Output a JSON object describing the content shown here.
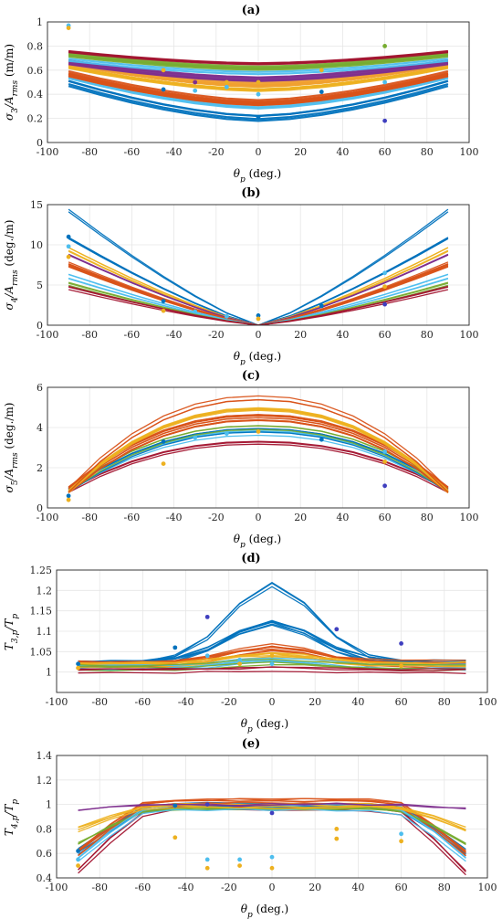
{
  "chart_data": [
    {
      "id": "a",
      "panel_label": "(a)",
      "type": "line",
      "xlabel": "θp (deg.)",
      "ylabel": "σ3/Arms (m/m)",
      "xlim": [
        -100,
        100
      ],
      "ylim": [
        0,
        1
      ],
      "xticks": [
        "-100",
        "-80",
        "-60",
        "-40",
        "-20",
        "0",
        "20",
        "40",
        "60",
        "80",
        "100"
      ],
      "yticks": [
        "0",
        "0.2",
        "0.4",
        "0.6",
        "0.8",
        "1"
      ],
      "grid": true,
      "curve_shape": "bowl",
      "x": [
        -90,
        -75,
        -60,
        -45,
        -30,
        -15,
        0,
        15,
        30,
        45,
        60,
        75,
        90
      ],
      "bands": [
        {
          "color": "#0072BD",
          "edge": 0.49,
          "center": 0.2,
          "count": 4
        },
        {
          "color": "#4DBEEE",
          "edge": 0.55,
          "center": 0.3,
          "count": 3
        },
        {
          "color": "#D95319",
          "edge": 0.57,
          "center": 0.33,
          "count": 10
        },
        {
          "color": "#EDB120",
          "edge": 0.64,
          "center": 0.45,
          "count": 6
        },
        {
          "color": "#F0A030",
          "edge": 0.66,
          "center": 0.48,
          "count": 4
        },
        {
          "color": "#7E2F8E",
          "edge": 0.67,
          "center": 0.53,
          "count": 5
        },
        {
          "color": "#4DBEEE",
          "edge": 0.7,
          "center": 0.59,
          "count": 3
        },
        {
          "color": "#77AC30",
          "edge": 0.72,
          "center": 0.61,
          "count": 4
        },
        {
          "color": "#A2142F",
          "edge": 0.76,
          "center": 0.66,
          "count": 3
        }
      ],
      "markers": [
        {
          "x": -90,
          "y": 0.97,
          "color": "#4DBEEE"
        },
        {
          "x": -90,
          "y": 0.95,
          "color": "#EDB120"
        },
        {
          "x": -45,
          "y": 0.44,
          "color": "#0072BD"
        },
        {
          "x": -45,
          "y": 0.6,
          "color": "#EDB120"
        },
        {
          "x": -30,
          "y": 0.5,
          "color": "#7E2F8E"
        },
        {
          "x": -30,
          "y": 0.43,
          "color": "#4DBEEE"
        },
        {
          "x": -15,
          "y": 0.46,
          "color": "#4DBEEE"
        },
        {
          "x": -15,
          "y": 0.5,
          "color": "#EDB120"
        },
        {
          "x": 0,
          "y": 0.21,
          "color": "#0072BD"
        },
        {
          "x": 0,
          "y": 0.4,
          "color": "#4DBEEE"
        },
        {
          "x": 0,
          "y": 0.5,
          "color": "#EDB120"
        },
        {
          "x": 30,
          "y": 0.42,
          "color": "#0072BD"
        },
        {
          "x": 30,
          "y": 0.6,
          "color": "#EDB120"
        },
        {
          "x": 60,
          "y": 0.18,
          "color": "#3F3FBF"
        },
        {
          "x": 60,
          "y": 0.8,
          "color": "#77AC30"
        },
        {
          "x": 60,
          "y": 0.5,
          "color": "#4DBEEE"
        }
      ]
    },
    {
      "id": "b",
      "panel_label": "(b)",
      "type": "line",
      "xlabel": "θp (deg.)",
      "ylabel": "σ4/Arms (deg./m)",
      "xlim": [
        -100,
        100
      ],
      "ylim": [
        0,
        15
      ],
      "xticks": [
        "-100",
        "-80",
        "-60",
        "-40",
        "-20",
        "0",
        "20",
        "40",
        "60",
        "80",
        "100"
      ],
      "yticks": [
        "0",
        "5",
        "10",
        "15"
      ],
      "grid": true,
      "curve_shape": "v",
      "x": [
        -90,
        -75,
        -60,
        -45,
        -30,
        -15,
        0,
        15,
        30,
        45,
        60,
        75,
        90
      ],
      "bands": [
        {
          "color": "#0072BD",
          "edge": 14.2,
          "center": 0,
          "count": 2
        },
        {
          "color": "#0072BD",
          "edge": 11.0,
          "center": 0,
          "count": 4
        },
        {
          "color": "#EDB120",
          "edge": 9.5,
          "center": 0,
          "count": 4
        },
        {
          "color": "#7E2F8E",
          "edge": 8.5,
          "center": 0,
          "count": 4
        },
        {
          "color": "#D95319",
          "edge": 7.5,
          "center": 0,
          "count": 10
        },
        {
          "color": "#4DBEEE",
          "edge": 6.0,
          "center": 0,
          "count": 4
        },
        {
          "color": "#77AC30",
          "edge": 5.3,
          "center": 0,
          "count": 3
        },
        {
          "color": "#A2142F",
          "edge": 4.5,
          "center": 0,
          "count": 3
        }
      ],
      "markers": [
        {
          "x": -90,
          "y": 11.0,
          "color": "#0072BD"
        },
        {
          "x": -90,
          "y": 9.8,
          "color": "#4DBEEE"
        },
        {
          "x": -90,
          "y": 8.5,
          "color": "#EDB120"
        },
        {
          "x": -45,
          "y": 3.0,
          "color": "#0072BD"
        },
        {
          "x": -45,
          "y": 1.8,
          "color": "#EDB120"
        },
        {
          "x": -30,
          "y": 1.7,
          "color": "#4DBEEE"
        },
        {
          "x": -15,
          "y": 1.1,
          "color": "#4DBEEE"
        },
        {
          "x": 0,
          "y": 1.2,
          "color": "#0072BD"
        },
        {
          "x": 0,
          "y": 0.8,
          "color": "#EDB120"
        },
        {
          "x": 30,
          "y": 2.4,
          "color": "#0072BD"
        },
        {
          "x": 60,
          "y": 2.6,
          "color": "#3F3FBF"
        },
        {
          "x": 60,
          "y": 4.8,
          "color": "#EDB120"
        },
        {
          "x": 60,
          "y": 6.5,
          "color": "#4DBEEE"
        }
      ]
    },
    {
      "id": "c",
      "panel_label": "(c)",
      "type": "line",
      "xlabel": "θp (deg.)",
      "ylabel": "σ5/Arms (deg./m)",
      "xlim": [
        -100,
        100
      ],
      "ylim": [
        0,
        6
      ],
      "xticks": [
        "-100",
        "-80",
        "-60",
        "-40",
        "-20",
        "0",
        "20",
        "40",
        "60",
        "80",
        "100"
      ],
      "yticks": [
        "0",
        "2",
        "4",
        "6"
      ],
      "grid": true,
      "curve_shape": "dome",
      "x": [
        -90,
        -75,
        -60,
        -45,
        -30,
        -15,
        0,
        15,
        30,
        45,
        60,
        75,
        90
      ],
      "bands": [
        {
          "color": "#A2142F",
          "edge": 0.9,
          "center": 3.3,
          "count": 3
        },
        {
          "color": "#4DBEEE",
          "edge": 0.9,
          "center": 3.7,
          "count": 4
        },
        {
          "color": "#0072BD",
          "edge": 0.9,
          "center": 3.9,
          "count": 4
        },
        {
          "color": "#77AC30",
          "edge": 0.9,
          "center": 4.0,
          "count": 3
        },
        {
          "color": "#D95319",
          "edge": 0.9,
          "center": 4.5,
          "count": 10
        },
        {
          "color": "#EDB120",
          "edge": 0.9,
          "center": 5.0,
          "count": 6
        },
        {
          "color": "#D95319",
          "edge": 0.9,
          "center": 5.5,
          "count": 3
        }
      ],
      "markers": [
        {
          "x": -90,
          "y": 0.6,
          "color": "#0072BD"
        },
        {
          "x": -90,
          "y": 0.4,
          "color": "#EDB120"
        },
        {
          "x": -45,
          "y": 3.3,
          "color": "#0072BD"
        },
        {
          "x": -45,
          "y": 2.2,
          "color": "#EDB120"
        },
        {
          "x": -30,
          "y": 3.5,
          "color": "#4DBEEE"
        },
        {
          "x": -15,
          "y": 3.7,
          "color": "#4DBEEE"
        },
        {
          "x": 0,
          "y": 3.8,
          "color": "#EDB120"
        },
        {
          "x": 30,
          "y": 3.4,
          "color": "#0072BD"
        },
        {
          "x": 60,
          "y": 1.1,
          "color": "#3F3FBF"
        },
        {
          "x": 60,
          "y": 2.3,
          "color": "#EDB120"
        },
        {
          "x": 60,
          "y": 2.8,
          "color": "#4DBEEE"
        }
      ]
    },
    {
      "id": "d",
      "panel_label": "(d)",
      "type": "line",
      "xlabel": "θp (deg.)",
      "ylabel": "T3,p/Tp",
      "xlim": [
        -100,
        100
      ],
      "ylim": [
        0.95,
        1.25
      ],
      "xticks": [
        "-100",
        "-80",
        "-60",
        "-40",
        "-20",
        "0",
        "20",
        "40",
        "60",
        "80",
        "100"
      ],
      "yticks": [
        "1",
        "1.05",
        "1.1",
        "1.15",
        "1.2",
        "1.25"
      ],
      "grid": true,
      "curve_shape": "peak",
      "x": [
        -90,
        -75,
        -60,
        -45,
        -30,
        -15,
        0,
        15,
        30,
        45,
        60,
        75,
        90
      ],
      "bands": [
        {
          "color": "#0072BD",
          "edge": 1.02,
          "center": 1.21,
          "count": 3
        },
        {
          "color": "#0072BD",
          "edge": 1.02,
          "center": 1.12,
          "count": 6
        },
        {
          "color": "#D95319",
          "edge": 1.02,
          "center": 1.06,
          "count": 8
        },
        {
          "color": "#EDB120",
          "edge": 1.02,
          "center": 1.045,
          "count": 5
        },
        {
          "color": "#4DBEEE",
          "edge": 1.01,
          "center": 1.03,
          "count": 4
        },
        {
          "color": "#77AC30",
          "edge": 1.01,
          "center": 1.025,
          "count": 3
        },
        {
          "color": "#A2142F",
          "edge": 1.005,
          "center": 1.01,
          "count": 3
        }
      ],
      "markers": [
        {
          "x": -90,
          "y": 1.02,
          "color": "#0072BD"
        },
        {
          "x": -90,
          "y": 1.01,
          "color": "#EDB120"
        },
        {
          "x": -45,
          "y": 1.06,
          "color": "#0072BD"
        },
        {
          "x": -30,
          "y": 1.135,
          "color": "#3F3FBF"
        },
        {
          "x": -30,
          "y": 1.04,
          "color": "#4DBEEE"
        },
        {
          "x": -15,
          "y": 1.03,
          "color": "#4DBEEE"
        },
        {
          "x": -15,
          "y": 1.02,
          "color": "#EDB120"
        },
        {
          "x": 0,
          "y": 1.04,
          "color": "#EDB120"
        },
        {
          "x": 0,
          "y": 1.02,
          "color": "#4DBEEE"
        },
        {
          "x": 30,
          "y": 1.105,
          "color": "#3F3FBF"
        },
        {
          "x": 60,
          "y": 1.07,
          "color": "#3F3FBF"
        },
        {
          "x": 60,
          "y": 1.015,
          "color": "#EDB120"
        }
      ]
    },
    {
      "id": "e",
      "panel_label": "(e)",
      "type": "line",
      "xlabel": "θp (deg.)",
      "ylabel": "T4,p/Tp",
      "xlim": [
        -100,
        100
      ],
      "ylim": [
        0.4,
        1.4
      ],
      "xticks": [
        "-100",
        "-80",
        "-60",
        "-40",
        "-20",
        "0",
        "20",
        "40",
        "60",
        "80",
        "100"
      ],
      "yticks": [
        "0.4",
        "0.6",
        "0.8",
        "1",
        "1.2",
        "1.4"
      ],
      "grid": true,
      "curve_shape": "plateau",
      "x": [
        -90,
        -75,
        -60,
        -45,
        -30,
        -15,
        0,
        15,
        30,
        45,
        60,
        75,
        90
      ],
      "bands": [
        {
          "color": "#A2142F",
          "edge": 0.45,
          "center": 0.97,
          "count": 3
        },
        {
          "color": "#0072BD",
          "edge": 0.62,
          "center": 1.0,
          "count": 4
        },
        {
          "color": "#D95319",
          "edge": 0.6,
          "center": 1.02,
          "count": 6
        },
        {
          "color": "#77AC30",
          "edge": 0.7,
          "center": 0.98,
          "count": 3
        },
        {
          "color": "#4DBEEE",
          "edge": 0.55,
          "center": 0.98,
          "count": 3
        },
        {
          "color": "#EDB120",
          "edge": 0.8,
          "center": 0.99,
          "count": 4
        },
        {
          "color": "#7E2F8E",
          "edge": 0.95,
          "center": 0.99,
          "count": 2
        }
      ],
      "markers": [
        {
          "x": -90,
          "y": 0.62,
          "color": "#0072BD"
        },
        {
          "x": -90,
          "y": 0.55,
          "color": "#4DBEEE"
        },
        {
          "x": -90,
          "y": 0.5,
          "color": "#EDB120"
        },
        {
          "x": -45,
          "y": 0.99,
          "color": "#0072BD"
        },
        {
          "x": -45,
          "y": 0.73,
          "color": "#EDB120"
        },
        {
          "x": -30,
          "y": 1.0,
          "color": "#3F3FBF"
        },
        {
          "x": -30,
          "y": 0.55,
          "color": "#4DBEEE"
        },
        {
          "x": -30,
          "y": 0.48,
          "color": "#EDB120"
        },
        {
          "x": -15,
          "y": 0.55,
          "color": "#4DBEEE"
        },
        {
          "x": -15,
          "y": 0.5,
          "color": "#EDB120"
        },
        {
          "x": 0,
          "y": 0.93,
          "color": "#3F3FBF"
        },
        {
          "x": 0,
          "y": 0.57,
          "color": "#4DBEEE"
        },
        {
          "x": 0,
          "y": 0.48,
          "color": "#EDB120"
        },
        {
          "x": 30,
          "y": 0.8,
          "color": "#EDB120"
        },
        {
          "x": 30,
          "y": 0.72,
          "color": "#EDB120"
        },
        {
          "x": 60,
          "y": 0.76,
          "color": "#4DBEEE"
        },
        {
          "x": 60,
          "y": 0.7,
          "color": "#EDB120"
        }
      ]
    }
  ]
}
